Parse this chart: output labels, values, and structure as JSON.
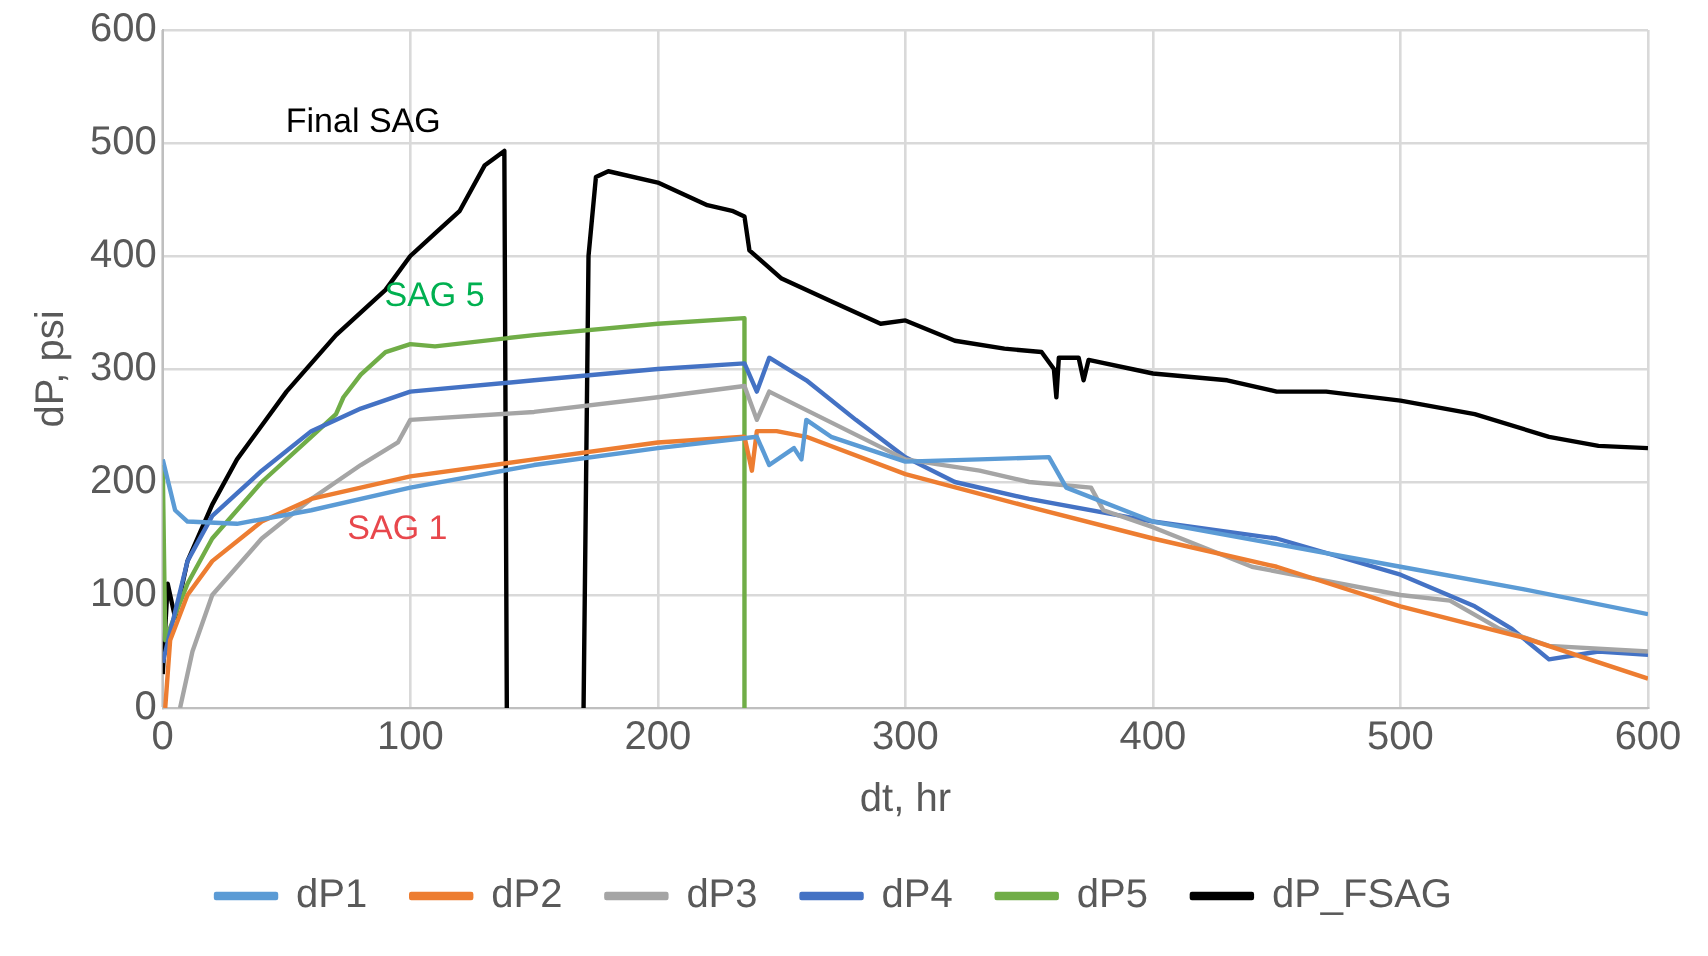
{
  "chart_data": {
    "type": "line",
    "xlabel": "dt, hr",
    "ylabel": "dP, psi",
    "xlim": [
      0,
      600
    ],
    "xticks": [
      0,
      100,
      200,
      300,
      400,
      500,
      600
    ],
    "ylim": [
      0,
      600
    ],
    "yticks": [
      0,
      100,
      200,
      300,
      400,
      500,
      600
    ],
    "grid": true,
    "legend": "bottom",
    "marker": "none",
    "line_style": "solid",
    "annotations": [
      "Final SAG",
      "SAG 5",
      "SAG 1"
    ],
    "series": [
      {
        "name": "dP1",
        "color": "#5b9bd5",
        "x": [
          0,
          5,
          10,
          30,
          60,
          100,
          150,
          200,
          240,
          245,
          255,
          258,
          260,
          270,
          300,
          330,
          358,
          365,
          400,
          450,
          500,
          550,
          600
        ],
        "values": [
          220,
          175,
          165,
          163,
          175,
          195,
          215,
          230,
          240,
          215,
          230,
          220,
          255,
          240,
          218,
          220,
          222,
          195,
          165,
          145,
          125,
          105,
          83
        ]
      },
      {
        "name": "dP2",
        "color": "#ed7d31",
        "x": [
          1,
          3,
          10,
          20,
          40,
          60,
          100,
          150,
          200,
          235,
          238,
          240,
          248,
          260,
          300,
          350,
          400,
          450,
          500,
          550,
          600
        ],
        "values": [
          0,
          60,
          100,
          130,
          165,
          185,
          205,
          220,
          235,
          240,
          210,
          245,
          245,
          240,
          207,
          178,
          150,
          125,
          90,
          62,
          26
        ]
      },
      {
        "name": "dP3",
        "color": "#a5a5a5",
        "x": [
          7,
          12,
          20,
          40,
          60,
          80,
          95,
          100,
          150,
          200,
          235,
          240,
          245,
          300,
          330,
          350,
          375,
          380,
          400,
          440,
          500,
          520,
          540,
          560,
          600
        ],
        "values": [
          0,
          50,
          100,
          150,
          185,
          215,
          235,
          255,
          262,
          275,
          285,
          255,
          280,
          220,
          210,
          200,
          195,
          175,
          160,
          125,
          100,
          95,
          70,
          55,
          50
        ]
      },
      {
        "name": "dP4",
        "color": "#4472c4",
        "x": [
          0,
          10,
          20,
          40,
          60,
          80,
          100,
          150,
          200,
          235,
          240,
          245,
          260,
          280,
          300,
          320,
          350,
          400,
          450,
          500,
          530,
          545,
          560,
          580,
          600
        ],
        "values": [
          40,
          130,
          170,
          210,
          245,
          265,
          280,
          290,
          300,
          305,
          280,
          310,
          290,
          255,
          222,
          200,
          185,
          165,
          150,
          118,
          90,
          70,
          43,
          50,
          47
        ]
      },
      {
        "name": "dP5",
        "color": "#70ad47",
        "x": [
          0,
          1,
          10,
          20,
          40,
          60,
          70,
          73,
          80,
          90,
          100,
          110,
          150,
          200,
          235,
          235
        ],
        "values": [
          215,
          60,
          110,
          150,
          200,
          240,
          260,
          275,
          295,
          315,
          322,
          320,
          330,
          340,
          345,
          0
        ]
      },
      {
        "name": "dP_FSAG",
        "color": "#000000",
        "x": [
          0,
          2,
          5,
          10,
          20,
          30,
          50,
          70,
          90,
          100,
          110,
          120,
          130,
          138,
          139,
          155,
          170,
          172,
          175,
          180,
          200,
          220,
          230,
          235,
          237,
          250,
          270,
          290,
          300,
          320,
          340,
          355,
          360,
          361,
          362,
          370,
          372,
          374,
          400,
          430,
          450,
          470,
          500,
          530,
          560,
          580,
          600
        ],
        "values": [
          30,
          110,
          80,
          130,
          180,
          220,
          280,
          330,
          370,
          400,
          420,
          440,
          480,
          493,
          0,
          null,
          0,
          400,
          470,
          475,
          465,
          445,
          440,
          435,
          405,
          380,
          360,
          340,
          343,
          325,
          318,
          315,
          300,
          275,
          310,
          310,
          290,
          308,
          296,
          290,
          280,
          280,
          272,
          260,
          240,
          232,
          230
        ]
      }
    ]
  }
}
